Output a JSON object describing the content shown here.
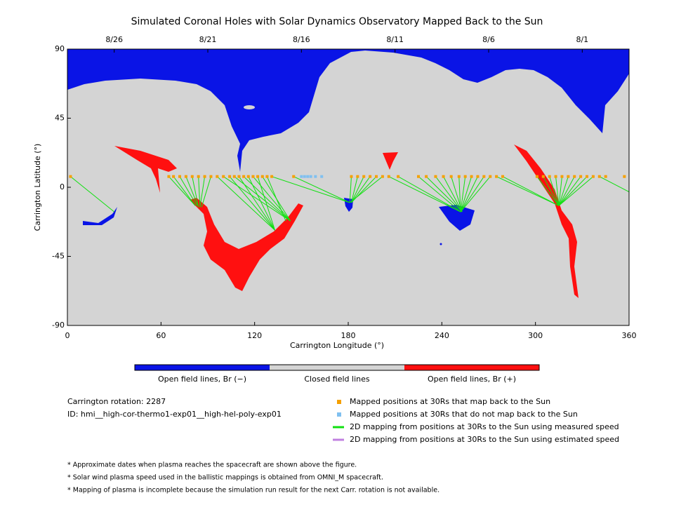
{
  "chart_data": {
    "type": "map",
    "title": "Simulated Coronal Holes with Solar Dynamics Observatory Mapped Back to the Sun",
    "xlabel": "Carrington Longitude (°)",
    "ylabel": "Carrington Latitude (°)",
    "xlim": [
      0,
      360
    ],
    "ylim": [
      -90,
      90
    ],
    "xticks": [
      0,
      60,
      120,
      180,
      240,
      300,
      360
    ],
    "yticks": [
      90,
      45,
      0,
      -45,
      -90
    ],
    "x2ticks": [
      {
        "value": 30,
        "label": "8/26"
      },
      {
        "value": 90,
        "label": "8/21"
      },
      {
        "value": 150,
        "label": "8/16"
      },
      {
        "value": 210,
        "label": "8/11"
      },
      {
        "value": 270,
        "label": "8/6"
      },
      {
        "value": 330,
        "label": "8/1"
      }
    ],
    "colorbar": [
      {
        "label": "Open field lines, Br (−)",
        "color": "#0a14e6"
      },
      {
        "label": "Closed field lines",
        "color": "#d4d4d4"
      },
      {
        "label": "Open field lines, Br (+)",
        "color": "#ff1010"
      }
    ],
    "info": [
      "Carrington rotation: 2287",
      "ID: hmi__high-cor-thermo1-exp01__high-hel-poly-exp01"
    ],
    "mapped": {
      "name": "Mapped positions at 30Rs that map back to the Sun",
      "color": "#f5a000",
      "x": [
        2,
        65,
        68,
        72,
        76,
        80,
        84,
        88,
        92,
        96,
        100,
        104,
        107,
        110,
        113,
        116,
        119,
        122,
        125,
        128,
        131,
        145,
        182,
        186,
        190,
        194,
        198,
        202,
        206,
        212,
        225,
        230,
        236,
        241,
        246,
        251,
        255,
        259,
        263,
        267,
        271,
        275,
        279,
        301,
        305,
        309,
        313,
        317,
        321,
        325,
        329,
        333,
        337,
        341,
        345,
        357
      ],
      "y": [
        7,
        7,
        7,
        7,
        7,
        7,
        7,
        7,
        7,
        7,
        7,
        7,
        7,
        7,
        7,
        7,
        7,
        7,
        7,
        7,
        7,
        7,
        7,
        7,
        7,
        7,
        7,
        7,
        7,
        7,
        7,
        7,
        7,
        7,
        7,
        7,
        7,
        7,
        7,
        7,
        7,
        7,
        7,
        7,
        7,
        7,
        7,
        7,
        7,
        7,
        7,
        7,
        7,
        7,
        7,
        7
      ]
    },
    "unmapped": {
      "name": "Mapped positions at 30Rs that do not map back to the Sun",
      "color": "#80c0f0",
      "x": [
        150,
        152,
        154,
        156,
        159,
        163
      ],
      "y": [
        7,
        7,
        7,
        7,
        7,
        7
      ]
    },
    "mapping": {
      "name": "2D mapping from positions at 30Rs to the Sun using measured speed",
      "color": "#10e010",
      "foot_x": [
        30,
        82,
        82,
        83,
        84,
        84,
        85,
        85,
        86,
        133,
        143,
        133,
        143,
        133,
        143,
        133,
        143,
        133,
        143,
        140,
        181,
        181,
        181,
        182,
        182,
        182,
        182,
        181,
        252,
        252,
        252,
        253,
        253,
        253,
        253,
        252,
        252,
        252,
        252,
        252,
        252,
        315,
        315,
        315,
        315,
        315,
        315,
        315,
        315,
        315,
        315,
        315,
        315,
        360
      ],
      "foot_y": [
        -16,
        -12,
        -12,
        -12,
        -13,
        -13,
        -13,
        -13,
        -13,
        -28,
        -22,
        -28,
        -22,
        -28,
        -22,
        -28,
        -22,
        -28,
        -22,
        -22,
        -10,
        -10,
        -10,
        -10,
        -10,
        -10,
        -10,
        -10,
        -16,
        -16,
        -16,
        -16,
        -16,
        -16,
        -16,
        -16,
        -16,
        -16,
        -16,
        -16,
        -16,
        -12,
        -12,
        -12,
        -12,
        -12,
        -12,
        -12,
        -12,
        -12,
        -12,
        -12,
        -12,
        -3
      ]
    },
    "estimated": {
      "name": "2D mapping from positions at 30Rs to the Sun using estimated speed",
      "color": "#c080e0"
    },
    "notes": [
      "* Approximate dates when plasma reaches the spacecraft are shown above the figure.",
      "* Solar wind plasma speed used in the ballistic mappings is obtained from OMNI_M spacecraft.",
      "* Mapping of plasma is incomplete because the simulation run result for the next Carr. rotation is not available."
    ]
  }
}
